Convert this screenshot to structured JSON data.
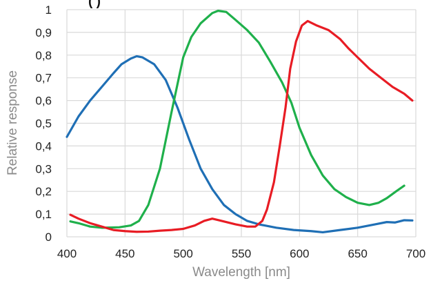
{
  "chart_data": {
    "type": "line",
    "title": "",
    "xlabel": "Wavelength [nm]",
    "ylabel": "Relative response",
    "xlim": [
      400,
      700
    ],
    "ylim": [
      0,
      1
    ],
    "x_ticks": [
      400,
      450,
      500,
      550,
      600,
      650,
      700
    ],
    "x_tick_labels": [
      "400",
      "450",
      "500",
      "550",
      "600",
      "650",
      "700"
    ],
    "y_ticks": [
      0,
      0.1,
      0.2,
      0.3,
      0.4,
      0.5,
      0.6,
      0.7,
      0.8,
      0.9,
      1
    ],
    "y_tick_labels": [
      "0",
      "0,1",
      "0,2",
      "0,3",
      "0,4",
      "0,5",
      "0,6",
      "0,7",
      "0,8",
      "0,9",
      "1"
    ],
    "grid": true,
    "legend": "none",
    "top_partial_text": "(        )",
    "series": [
      {
        "color": "#1f6fb5",
        "points": [
          [
            400,
            0.44
          ],
          [
            410,
            0.53
          ],
          [
            420,
            0.6
          ],
          [
            430,
            0.66
          ],
          [
            440,
            0.72
          ],
          [
            447,
            0.76
          ],
          [
            455,
            0.785
          ],
          [
            460,
            0.795
          ],
          [
            465,
            0.79
          ],
          [
            475,
            0.76
          ],
          [
            485,
            0.69
          ],
          [
            495,
            0.57
          ],
          [
            505,
            0.43
          ],
          [
            515,
            0.3
          ],
          [
            525,
            0.21
          ],
          [
            535,
            0.14
          ],
          [
            545,
            0.1
          ],
          [
            555,
            0.07
          ],
          [
            565,
            0.055
          ],
          [
            580,
            0.04
          ],
          [
            595,
            0.03
          ],
          [
            610,
            0.025
          ],
          [
            620,
            0.02
          ],
          [
            635,
            0.03
          ],
          [
            650,
            0.04
          ],
          [
            665,
            0.055
          ],
          [
            675,
            0.065
          ],
          [
            682,
            0.063
          ],
          [
            690,
            0.073
          ],
          [
            697,
            0.072
          ]
        ]
      },
      {
        "color": "#1fb04b",
        "points": [
          [
            403,
            0.068
          ],
          [
            410,
            0.06
          ],
          [
            420,
            0.045
          ],
          [
            430,
            0.04
          ],
          [
            445,
            0.042
          ],
          [
            455,
            0.05
          ],
          [
            462,
            0.07
          ],
          [
            470,
            0.14
          ],
          [
            480,
            0.3
          ],
          [
            490,
            0.55
          ],
          [
            500,
            0.79
          ],
          [
            507,
            0.88
          ],
          [
            515,
            0.94
          ],
          [
            525,
            0.985
          ],
          [
            530,
            0.995
          ],
          [
            537,
            0.99
          ],
          [
            545,
            0.955
          ],
          [
            555,
            0.91
          ],
          [
            565,
            0.855
          ],
          [
            575,
            0.77
          ],
          [
            585,
            0.68
          ],
          [
            593,
            0.59
          ],
          [
            600,
            0.48
          ],
          [
            610,
            0.36
          ],
          [
            620,
            0.27
          ],
          [
            630,
            0.21
          ],
          [
            640,
            0.175
          ],
          [
            650,
            0.15
          ],
          [
            660,
            0.14
          ],
          [
            668,
            0.15
          ],
          [
            675,
            0.17
          ],
          [
            683,
            0.2
          ],
          [
            690,
            0.225
          ]
        ]
      },
      {
        "color": "#e81c24",
        "points": [
          [
            403,
            0.097
          ],
          [
            410,
            0.08
          ],
          [
            420,
            0.06
          ],
          [
            430,
            0.045
          ],
          [
            440,
            0.03
          ],
          [
            450,
            0.025
          ],
          [
            460,
            0.022
          ],
          [
            470,
            0.023
          ],
          [
            480,
            0.027
          ],
          [
            490,
            0.03
          ],
          [
            500,
            0.035
          ],
          [
            510,
            0.05
          ],
          [
            518,
            0.07
          ],
          [
            525,
            0.08
          ],
          [
            533,
            0.07
          ],
          [
            545,
            0.055
          ],
          [
            555,
            0.045
          ],
          [
            562,
            0.045
          ],
          [
            568,
            0.07
          ],
          [
            572,
            0.12
          ],
          [
            578,
            0.24
          ],
          [
            583,
            0.4
          ],
          [
            588,
            0.57
          ],
          [
            592,
            0.74
          ],
          [
            597,
            0.86
          ],
          [
            602,
            0.93
          ],
          [
            607,
            0.95
          ],
          [
            615,
            0.93
          ],
          [
            625,
            0.91
          ],
          [
            635,
            0.87
          ],
          [
            642,
            0.83
          ],
          [
            650,
            0.79
          ],
          [
            660,
            0.74
          ],
          [
            670,
            0.7
          ],
          [
            680,
            0.66
          ],
          [
            690,
            0.63
          ],
          [
            697,
            0.6
          ]
        ]
      }
    ]
  }
}
